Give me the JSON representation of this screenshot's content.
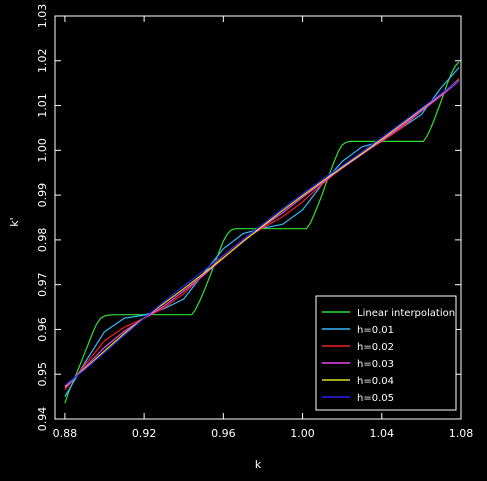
{
  "chart_data": {
    "type": "line",
    "title": "",
    "xlabel": "k",
    "ylabel": "k'",
    "xlim": [
      0.875,
      1.08
    ],
    "ylim": [
      0.94,
      1.03
    ],
    "x_ticks": [
      0.88,
      0.92,
      0.96,
      1.0,
      1.04,
      1.08
    ],
    "x_tick_labels": [
      "0.88",
      "0.92",
      "0.96",
      "1.00",
      "1.04",
      "1.08"
    ],
    "y_ticks": [
      0.94,
      0.95,
      0.96,
      0.97,
      0.98,
      0.99,
      1.0,
      1.01,
      1.02,
      1.03
    ],
    "y_tick_labels": [
      "0.94",
      "0.95",
      "0.96",
      "0.97",
      "0.98",
      "0.99",
      "1.00",
      "1.01",
      "1.02",
      "1.03"
    ],
    "grid": false,
    "legend_position": "bottom-right",
    "background": "#000000",
    "axis_color": "#ffffff",
    "series": [
      {
        "name": "Linear interpolation",
        "color": "#33dd33",
        "x": [
          0.88,
          0.8805,
          0.882,
          0.884,
          0.886,
          0.888,
          0.89,
          0.892,
          0.894,
          0.896,
          0.898,
          0.9,
          0.902,
          0.905,
          0.944,
          0.946,
          0.948,
          0.95,
          0.952,
          0.954,
          0.956,
          0.958,
          0.96,
          0.962,
          0.964,
          0.966,
          1.002,
          1.004,
          1.006,
          1.008,
          1.01,
          1.012,
          1.014,
          1.016,
          1.018,
          1.02,
          1.022,
          1.024,
          1.061,
          1.063,
          1.065,
          1.067,
          1.069,
          1.071,
          1.073,
          1.075,
          1.077,
          1.079
        ],
        "y": [
          0.9435,
          0.9442,
          0.9462,
          0.9482,
          0.9503,
          0.9525,
          0.9547,
          0.957,
          0.9592,
          0.9612,
          0.9625,
          0.963,
          0.9632,
          0.9633,
          0.9633,
          0.9645,
          0.9663,
          0.9683,
          0.9705,
          0.9728,
          0.9752,
          0.9775,
          0.9797,
          0.9813,
          0.9822,
          0.9825,
          0.9825,
          0.9838,
          0.9858,
          0.988,
          0.9903,
          0.9928,
          0.9952,
          0.9975,
          0.9997,
          1.0012,
          1.0018,
          1.002,
          1.002,
          1.0033,
          1.0052,
          1.0075,
          1.0098,
          1.0123,
          1.0148,
          1.017,
          1.0188,
          1.0197
        ]
      },
      {
        "name": "h=0.01",
        "color": "#33bbff",
        "x": [
          0.88,
          0.89,
          0.9,
          0.91,
          0.92,
          0.93,
          0.94,
          0.95,
          0.96,
          0.97,
          0.98,
          0.99,
          1.0,
          1.01,
          1.02,
          1.03,
          1.04,
          1.05,
          1.06,
          1.07,
          1.079
        ],
        "y": [
          0.945,
          0.9525,
          0.9595,
          0.9625,
          0.9632,
          0.9646,
          0.9668,
          0.9725,
          0.978,
          0.9814,
          0.9826,
          0.9835,
          0.9867,
          0.9925,
          0.9975,
          1.0008,
          1.002,
          1.005,
          1.008,
          1.014,
          1.0185
        ]
      },
      {
        "name": "h=0.02",
        "color": "#ee2222",
        "x": [
          0.88,
          0.89,
          0.9,
          0.91,
          0.92,
          0.93,
          0.94,
          0.95,
          0.96,
          0.97,
          0.98,
          0.99,
          1.0,
          1.01,
          1.02,
          1.03,
          1.04,
          1.05,
          1.06,
          1.07,
          1.079
        ],
        "y": [
          0.9465,
          0.952,
          0.9575,
          0.9605,
          0.9625,
          0.9648,
          0.968,
          0.9722,
          0.9765,
          0.98,
          0.9827,
          0.9852,
          0.9885,
          0.9925,
          0.9962,
          0.9993,
          1.002,
          1.005,
          1.0088,
          1.0123,
          1.016
        ]
      },
      {
        "name": "h=0.03",
        "color": "#ee44ee",
        "x": [
          0.88,
          0.89,
          0.9,
          0.91,
          0.92,
          0.93,
          0.94,
          0.95,
          0.96,
          0.97,
          0.98,
          0.99,
          1.0,
          1.01,
          1.02,
          1.03,
          1.04,
          1.05,
          1.06,
          1.07,
          1.079
        ],
        "y": [
          0.947,
          0.9515,
          0.956,
          0.9596,
          0.9625,
          0.9652,
          0.9686,
          0.9721,
          0.9759,
          0.9797,
          0.983,
          0.9861,
          0.9895,
          0.9928,
          0.996,
          0.9991,
          1.0022,
          1.0054,
          1.0088,
          1.0122,
          1.0155
        ]
      },
      {
        "name": "h=0.04",
        "color": "#dddd22",
        "x": [
          0.88,
          0.89,
          0.9,
          0.91,
          0.92,
          0.93,
          0.94,
          0.95,
          0.96,
          0.97,
          0.98,
          0.99,
          1.0,
          1.01,
          1.02,
          1.03,
          1.04,
          1.05,
          1.06,
          1.07,
          1.079
        ],
        "y": [
          0.9473,
          0.9512,
          0.9552,
          0.9591,
          0.9626,
          0.9658,
          0.9691,
          0.9725,
          0.976,
          0.9796,
          0.9832,
          0.9866,
          0.9899,
          0.9931,
          0.9962,
          0.9993,
          1.0025,
          1.0058,
          1.0092,
          1.0126,
          1.0157
        ]
      },
      {
        "name": "h=0.05",
        "color": "#2222ee",
        "x": [
          0.88,
          0.89,
          0.9,
          0.91,
          0.92,
          0.93,
          0.94,
          0.95,
          0.96,
          0.97,
          0.98,
          0.99,
          1.0,
          1.01,
          1.02,
          1.03,
          1.04,
          1.05,
          1.06,
          1.07,
          1.079
        ],
        "y": [
          0.9475,
          0.951,
          0.9548,
          0.9587,
          0.9625,
          0.9662,
          0.9697,
          0.9731,
          0.9766,
          0.9801,
          0.9836,
          0.987,
          0.9903,
          0.9935,
          0.9966,
          0.9997,
          1.0029,
          1.0061,
          1.0094,
          1.0127,
          1.0156
        ]
      }
    ]
  }
}
